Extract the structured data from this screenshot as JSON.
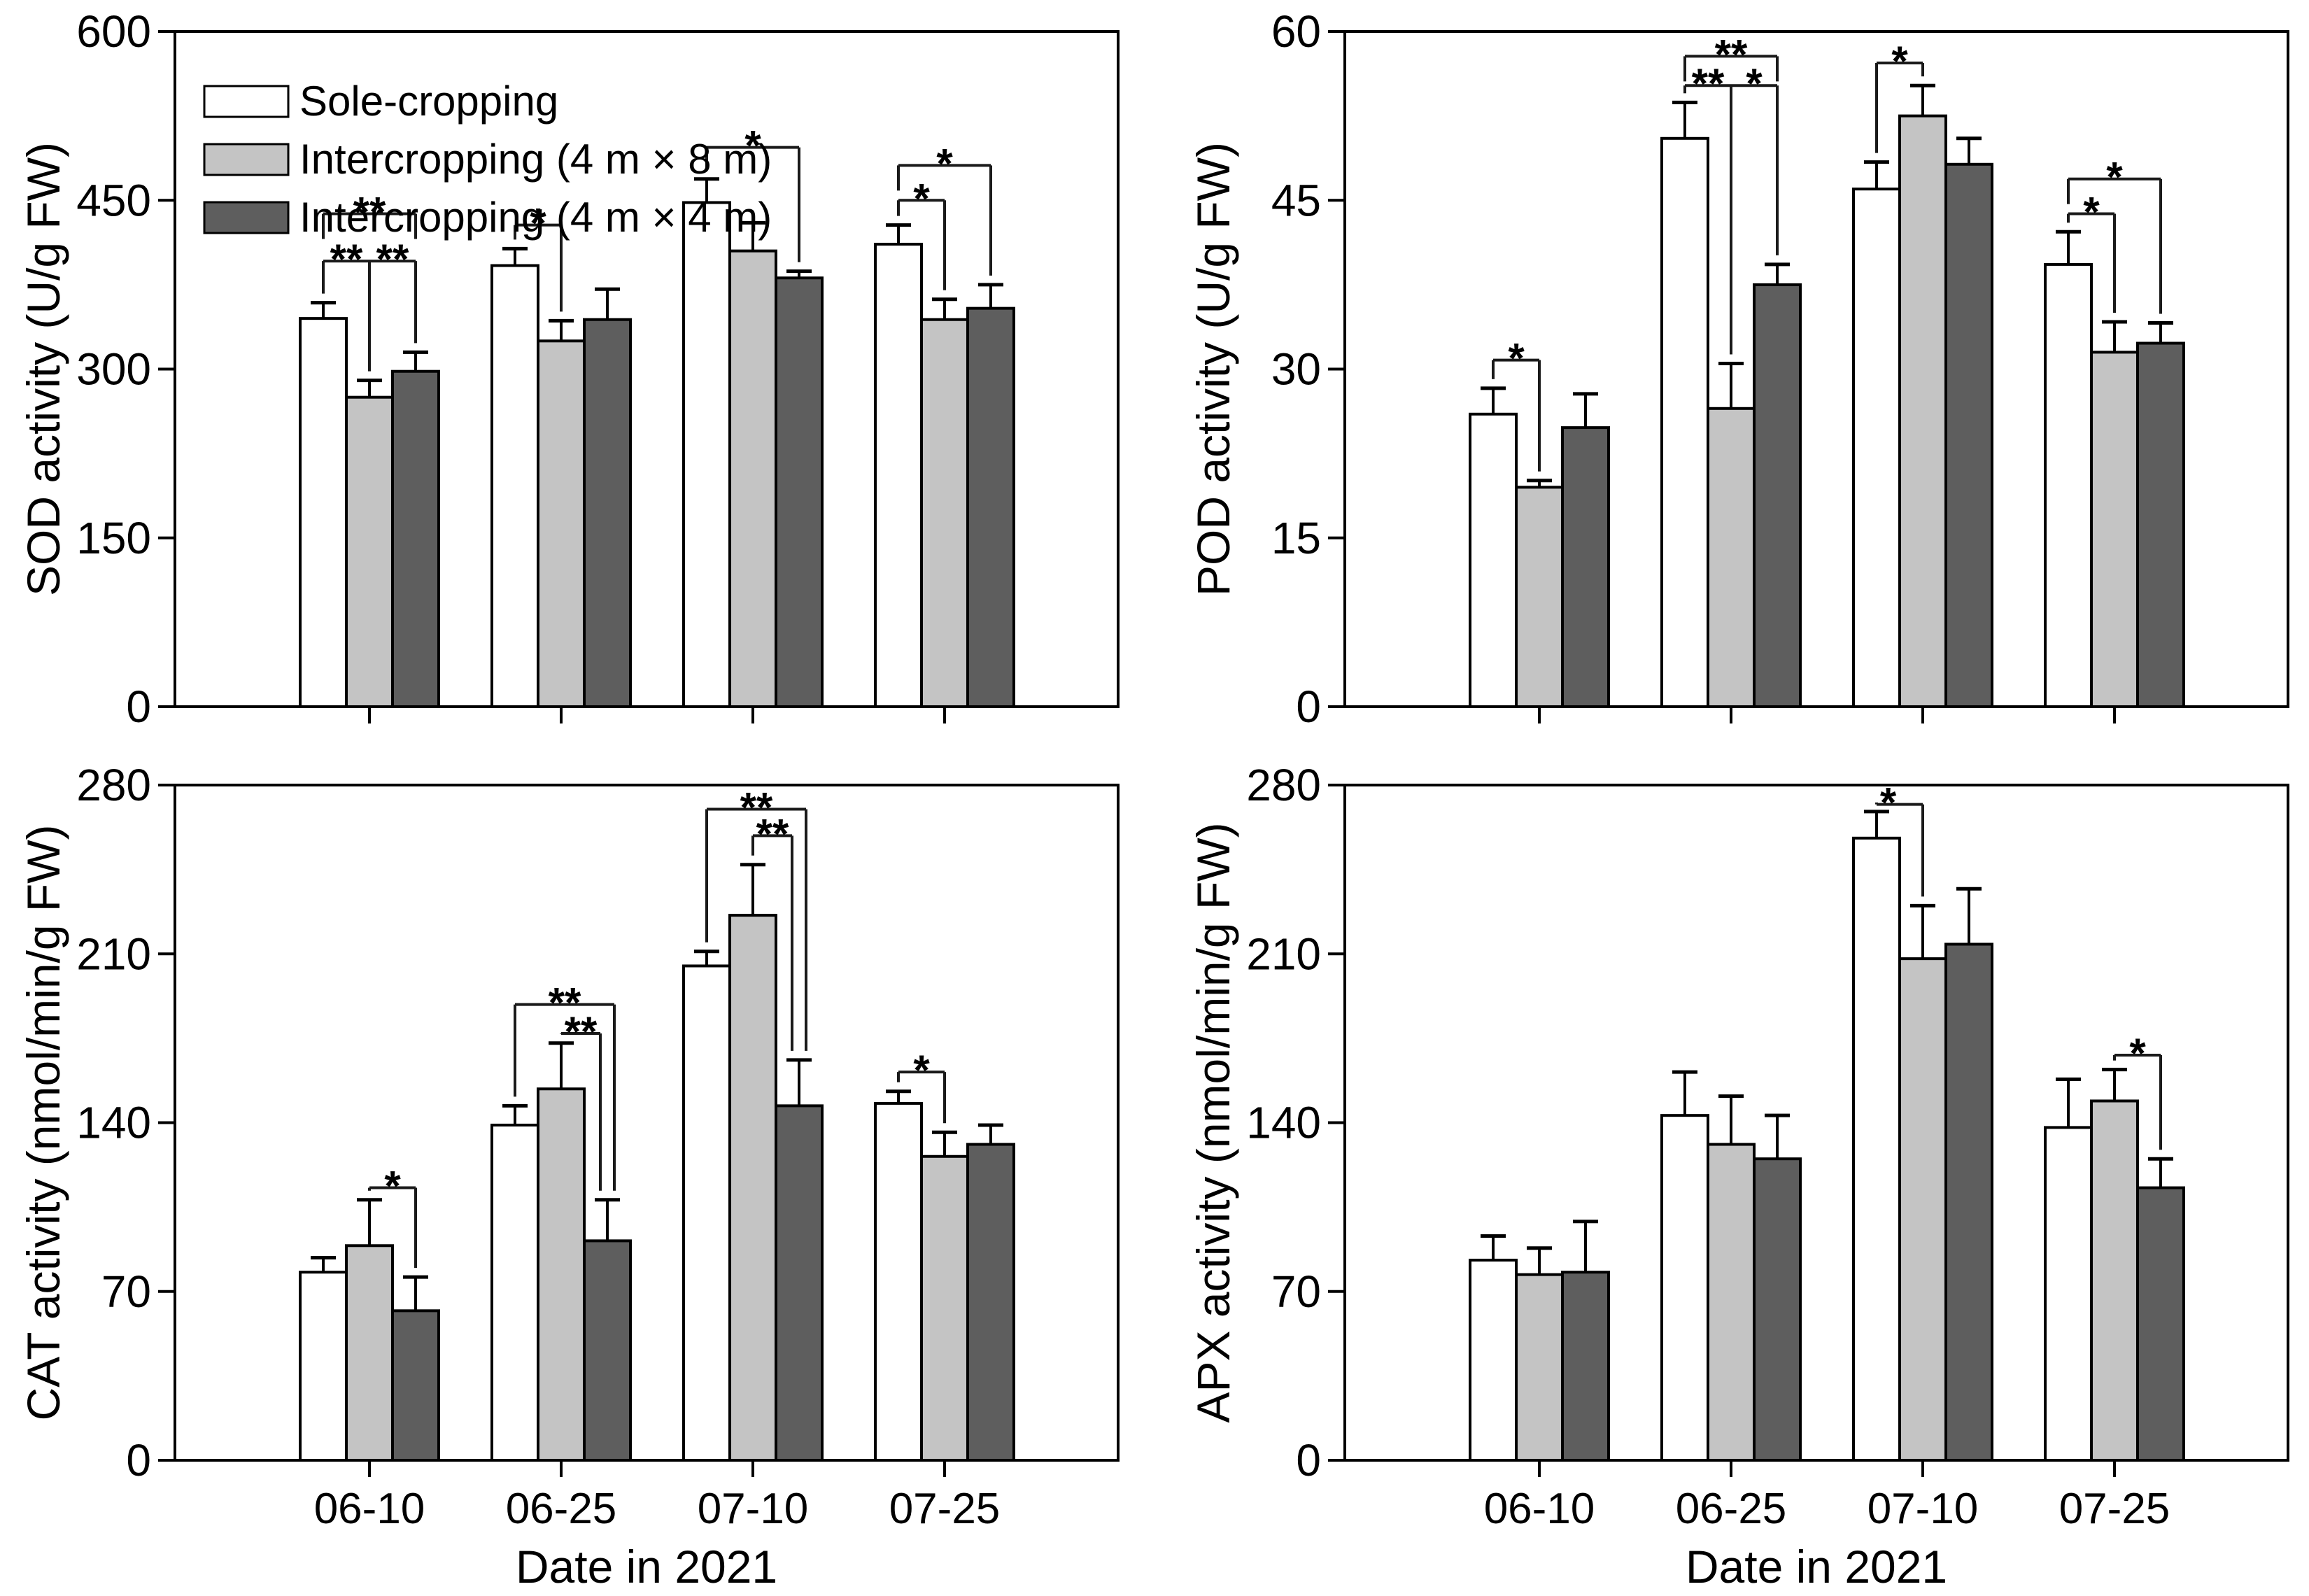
{
  "figure": {
    "background": "#ffffff",
    "x_axis_title": "Date in 2021"
  },
  "colors": {
    "frame": "#000000",
    "text": "#000000",
    "error": "#000000",
    "bracket": "#1a1a1a",
    "series": [
      "#ffffff",
      "#c4c4c4",
      "#5e5e5e"
    ]
  },
  "legend": {
    "items": [
      {
        "label": "Sole-cropping"
      },
      {
        "label": "Intercropping (4 m × 8 m)"
      },
      {
        "label": "Intercropping (4 m × 4 m)"
      }
    ]
  },
  "chart_data": [
    {
      "type": "bar",
      "id": "sod",
      "ylabel": "SOD activity (U/g FW)",
      "xlabel": "",
      "x_tick_labels": false,
      "show_legend": true,
      "categories": [
        "06-10",
        "06-25",
        "07-10",
        "07-25"
      ],
      "ylim": [
        0,
        600
      ],
      "yticks": [
        0,
        150,
        300,
        450,
        600
      ],
      "series": [
        {
          "name": "Sole-cropping",
          "values": [
            345,
            392,
            448,
            411
          ],
          "errors": [
            14,
            15,
            21,
            17
          ]
        },
        {
          "name": "Intercropping (4 m × 8 m)",
          "values": [
            275,
            325,
            405,
            344
          ],
          "errors": [
            15,
            18,
            25,
            18
          ]
        },
        {
          "name": "Intercropping (4 m × 4 m)",
          "values": [
            298,
            344,
            381,
            354
          ],
          "errors": [
            17,
            27,
            6,
            21
          ]
        }
      ],
      "significance": [
        {
          "group": 0,
          "type": "triple",
          "top": 396,
          "labels": [
            "**",
            "**"
          ]
        },
        {
          "group": 0,
          "type": "pair",
          "bars": [
            0,
            2
          ],
          "top": 438,
          "label": "**",
          "ends": [
            "stub",
            "stub"
          ]
        },
        {
          "group": 1,
          "type": "pair",
          "bars": [
            0,
            1
          ],
          "top": 428,
          "label": "*",
          "ends": [
            "err",
            "err"
          ]
        },
        {
          "group": 2,
          "type": "pair",
          "bars": [
            0,
            2
          ],
          "top": 497,
          "label": "*",
          "ends": [
            "err",
            "err"
          ]
        },
        {
          "group": 3,
          "type": "pair",
          "bars": [
            0,
            1
          ],
          "top": 450,
          "label": "*",
          "ends": [
            "err",
            "err"
          ]
        },
        {
          "group": 3,
          "type": "pair",
          "bars": [
            0,
            2
          ],
          "top": 481,
          "label": "*",
          "ends": [
            "stub",
            "err"
          ]
        }
      ]
    },
    {
      "type": "bar",
      "id": "pod",
      "ylabel": "POD activity (U/g FW)",
      "xlabel": "",
      "x_tick_labels": false,
      "show_legend": false,
      "categories": [
        "06-10",
        "06-25",
        "07-10",
        "07-25"
      ],
      "ylim": [
        0,
        60
      ],
      "yticks": [
        0,
        15,
        30,
        45,
        60
      ],
      "series": [
        {
          "name": "Sole-cropping",
          "values": [
            26,
            50.5,
            46,
            39.3
          ],
          "errors": [
            2.3,
            3.2,
            2.4,
            2.9
          ]
        },
        {
          "name": "Intercropping (4 m × 8 m)",
          "values": [
            19.5,
            26.5,
            52.5,
            31.5
          ],
          "errors": [
            0.6,
            4,
            2.7,
            2.7
          ]
        },
        {
          "name": "Intercropping (4 m × 4 m)",
          "values": [
            24.8,
            37.5,
            48.2,
            32.3
          ],
          "errors": [
            3,
            1.8,
            2.3,
            1.8
          ]
        }
      ],
      "significance": [
        {
          "group": 0,
          "type": "pair",
          "bars": [
            0,
            1
          ],
          "top": 30.8,
          "label": "*",
          "ends": [
            "err",
            "err"
          ]
        },
        {
          "group": 1,
          "type": "triple",
          "top": 55.2,
          "labels": [
            "**",
            "*"
          ]
        },
        {
          "group": 1,
          "type": "pair",
          "bars": [
            0,
            2
          ],
          "top": 57.8,
          "label": "**",
          "ends": [
            "stub",
            "stub"
          ]
        },
        {
          "group": 2,
          "type": "pair",
          "bars": [
            0,
            1
          ],
          "top": 57.2,
          "label": "*",
          "ends": [
            "err",
            "err"
          ]
        },
        {
          "group": 3,
          "type": "pair",
          "bars": [
            0,
            1
          ],
          "top": 43.8,
          "label": "*",
          "ends": [
            "err",
            "err"
          ]
        },
        {
          "group": 3,
          "type": "pair",
          "bars": [
            0,
            2
          ],
          "top": 46.9,
          "label": "*",
          "ends": [
            "stub",
            "err"
          ]
        }
      ]
    },
    {
      "type": "bar",
      "id": "cat",
      "ylabel": "CAT activity (nmol/min/g FW)",
      "xlabel": "Date in 2021",
      "x_tick_labels": true,
      "show_legend": false,
      "categories": [
        "06-10",
        "06-25",
        "07-10",
        "07-25"
      ],
      "ylim": [
        0,
        280
      ],
      "yticks": [
        0,
        70,
        140,
        210,
        280
      ],
      "series": [
        {
          "name": "Sole-cropping",
          "values": [
            78,
            139,
            205,
            148
          ],
          "errors": [
            6,
            8,
            6,
            5
          ]
        },
        {
          "name": "Intercropping (4 m × 8 m)",
          "values": [
            89,
            154,
            226,
            126
          ],
          "errors": [
            19,
            19,
            21,
            10
          ]
        },
        {
          "name": "Intercropping (4 m × 4 m)",
          "values": [
            62,
            91,
            147,
            131
          ],
          "errors": [
            14,
            17,
            19,
            8
          ]
        }
      ],
      "significance": [
        {
          "group": 0,
          "type": "pair",
          "bars": [
            1,
            2
          ],
          "top": 113,
          "label": "*",
          "ends": [
            "err",
            "err"
          ]
        },
        {
          "group": 1,
          "type": "pair",
          "bars": [
            1,
            2
          ],
          "top": 177,
          "label": "**",
          "ends": [
            "err",
            "err"
          ],
          "xoff": [
            0,
            -10
          ]
        },
        {
          "group": 1,
          "type": "pair",
          "bars": [
            0,
            2
          ],
          "top": 189,
          "label": "**",
          "ends": [
            "err",
            "err"
          ],
          "xoff": [
            0,
            10
          ]
        },
        {
          "group": 2,
          "type": "pair",
          "bars": [
            1,
            2
          ],
          "top": 259,
          "label": "**",
          "ends": [
            "err",
            "err"
          ],
          "xoff": [
            0,
            -10
          ]
        },
        {
          "group": 2,
          "type": "pair",
          "bars": [
            0,
            2
          ],
          "top": 270,
          "label": "**",
          "ends": [
            "err",
            "err"
          ],
          "xoff": [
            0,
            10
          ]
        },
        {
          "group": 3,
          "type": "pair",
          "bars": [
            0,
            1
          ],
          "top": 161,
          "label": "*",
          "ends": [
            "err",
            "err"
          ]
        }
      ]
    },
    {
      "type": "bar",
      "id": "apx",
      "ylabel": "APX activity (nmol/min/g FW)",
      "xlabel": "Date in 2021",
      "x_tick_labels": true,
      "show_legend": false,
      "categories": [
        "06-10",
        "06-25",
        "07-10",
        "07-25"
      ],
      "ylim": [
        0,
        280
      ],
      "yticks": [
        0,
        70,
        140,
        210,
        280
      ],
      "series": [
        {
          "name": "Sole-cropping",
          "values": [
            83,
            143,
            258,
            138
          ],
          "errors": [
            10,
            18,
            11,
            20
          ]
        },
        {
          "name": "Intercropping (4 m × 8 m)",
          "values": [
            77,
            131,
            208,
            149
          ],
          "errors": [
            11,
            20,
            22,
            13
          ]
        },
        {
          "name": "Intercropping (4 m × 4 m)",
          "values": [
            78,
            125,
            214,
            113
          ],
          "errors": [
            21,
            18,
            23,
            12
          ]
        }
      ],
      "significance": [
        {
          "group": 2,
          "type": "pair",
          "bars": [
            0,
            1
          ],
          "top": 272,
          "label": "*",
          "ends": [
            "err",
            "err"
          ],
          "label_frac": 0.25
        },
        {
          "group": 3,
          "type": "pair",
          "bars": [
            1,
            2
          ],
          "top": 168,
          "label": "*",
          "ends": [
            "err",
            "err"
          ]
        }
      ]
    }
  ]
}
